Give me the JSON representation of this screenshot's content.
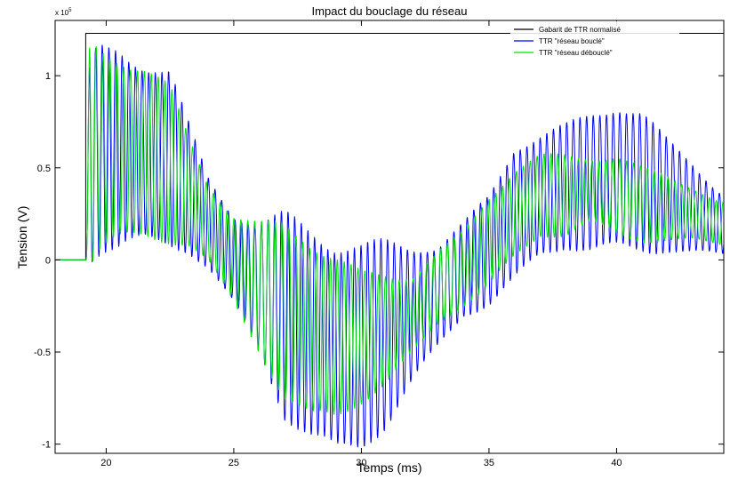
{
  "chart_data": {
    "type": "line",
    "title": "Impact du bouclage du réseau",
    "xlabel": "Temps (ms)",
    "ylabel": "Tension (V)",
    "y_exponent_label": "x 10",
    "y_exponent_power": "5",
    "xlim": [
      18,
      44.2
    ],
    "ylim": [
      -1.05,
      1.3
    ],
    "x_ticks": [
      20,
      25,
      30,
      35,
      40
    ],
    "x_tick_labels": [
      "20",
      "25",
      "30",
      "35",
      "40"
    ],
    "y_ticks": [
      -1,
      -0.5,
      0,
      0.5,
      1
    ],
    "y_tick_labels": [
      "-1",
      "-0.5",
      "0",
      "0.5",
      "1"
    ],
    "grid": false,
    "legend_position": "top-right",
    "series": [
      {
        "name": "Gabarit de TTR normalisé",
        "color": "#000000",
        "style": "step",
        "x": [
          18,
          19.2,
          19.2,
          44.2
        ],
        "y": [
          0,
          0,
          1.23,
          1.23
        ]
      },
      {
        "name": "TTR \"réseau bouclé\"",
        "color": "#0000ff",
        "style": "oscillation",
        "start": 19.2,
        "period": 0.26,
        "envelope": {
          "x": [
            19.2,
            19.35,
            19.8,
            20.5,
            21.5,
            22.5,
            23.2,
            24,
            25,
            26,
            27,
            28,
            29,
            30,
            31,
            32,
            33,
            34,
            35,
            36,
            37,
            38,
            39,
            40,
            41,
            42,
            43,
            44
          ],
          "center": [
            0.03,
            0.55,
            0.6,
            0.6,
            0.58,
            0.55,
            0.4,
            0.2,
            0.0,
            -0.15,
            -0.3,
            -0.4,
            -0.48,
            -0.47,
            -0.4,
            -0.3,
            -0.2,
            -0.05,
            0.05,
            0.25,
            0.35,
            0.4,
            0.42,
            0.45,
            0.42,
            0.35,
            0.28,
            0.2
          ],
          "amplitude": [
            0.03,
            0.55,
            0.55,
            0.55,
            0.5,
            0.48,
            0.35,
            0.25,
            0.25,
            0.35,
            0.55,
            0.58,
            0.58,
            0.55,
            0.5,
            0.38,
            0.28,
            0.25,
            0.3,
            0.38,
            0.33,
            0.33,
            0.38,
            0.4,
            0.38,
            0.3,
            0.25,
            0.18
          ]
        }
      },
      {
        "name": "TTR \"réseau débouclé\"",
        "color": "#00e000",
        "style": "oscillation",
        "start": 19.2,
        "period": 0.27,
        "envelope": {
          "x": [
            19.2,
            19.35,
            19.8,
            20.5,
            21.5,
            22.5,
            23.2,
            24,
            25,
            26,
            27,
            28,
            29,
            30,
            31,
            32,
            33,
            34,
            35,
            36,
            37,
            38,
            39,
            40,
            41,
            42,
            43,
            44
          ],
          "center": [
            0.03,
            0.58,
            0.6,
            0.6,
            0.58,
            0.52,
            0.38,
            0.2,
            0.0,
            -0.15,
            -0.28,
            -0.38,
            -0.42,
            -0.42,
            -0.38,
            -0.3,
            -0.15,
            -0.05,
            0.1,
            0.25,
            0.35,
            0.35,
            0.38,
            0.35,
            0.3,
            0.28,
            0.25,
            0.2
          ],
          "amplitude": [
            0.03,
            0.6,
            0.55,
            0.52,
            0.48,
            0.42,
            0.3,
            0.22,
            0.25,
            0.35,
            0.48,
            0.5,
            0.45,
            0.35,
            0.3,
            0.22,
            0.2,
            0.2,
            0.25,
            0.25,
            0.22,
            0.22,
            0.18,
            0.22,
            0.2,
            0.18,
            0.15,
            0.12
          ]
        }
      }
    ]
  }
}
